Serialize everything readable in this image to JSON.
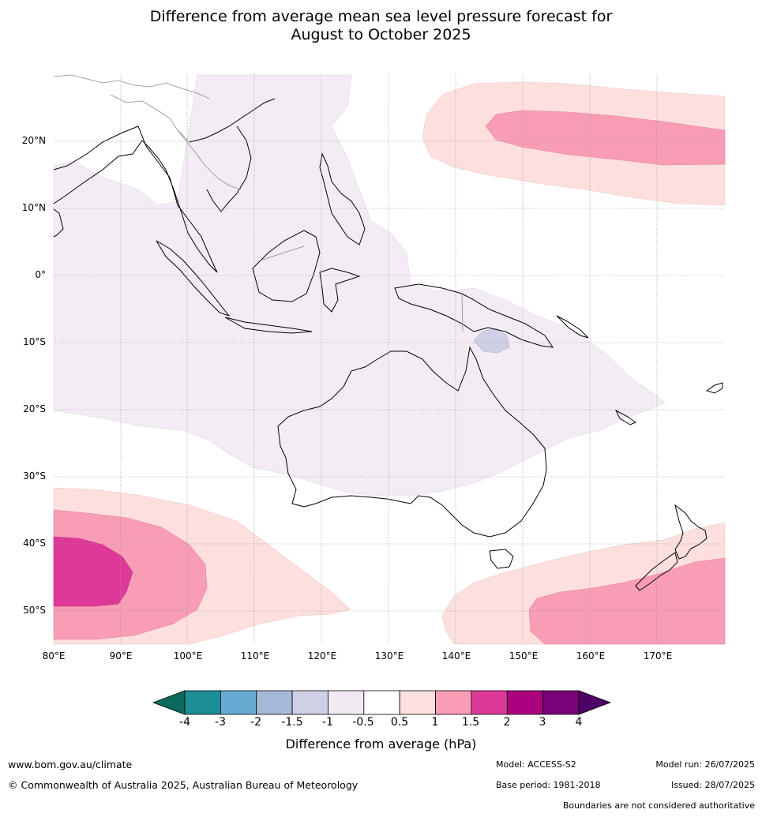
{
  "title": {
    "line1": "Difference from average mean sea level pressure forecast for",
    "line2": "August to October 2025"
  },
  "map": {
    "lat_labels": [
      "20°N",
      "10°N",
      "0°",
      "10°S",
      "20°S",
      "30°S",
      "40°S",
      "50°S"
    ],
    "lon_labels": [
      "80°E",
      "90°E",
      "100°E",
      "110°E",
      "120°E",
      "130°E",
      "140°E",
      "150°E",
      "160°E",
      "170°E"
    ],
    "region": "80°E–180°E, 30°N–55°S",
    "gridlines": true,
    "anomaly_areas": [
      {
        "area": "North-west Pacific",
        "range": "1 to 1.5 and 1.5 to 2"
      },
      {
        "area": "Southern Indian Ocean",
        "range": "1 to 1.5, 1.5 to 2 and 2 to 3"
      },
      {
        "area": "Tasman Sea / New Zealand",
        "range": "1 to 1.5 and 1.5 to 2"
      },
      {
        "area": "Maritime Continent and Australia",
        "range": "-0.5 to -1"
      },
      {
        "area": "South of New Guinea",
        "range": "-1 to -1.5"
      }
    ]
  },
  "colorbar": {
    "ticks": [
      "-4",
      "-3",
      "-2",
      "-1.5",
      "-1",
      "-0.5",
      "0.5",
      "1",
      "1.5",
      "2",
      "3",
      "4"
    ],
    "colors": [
      "#1b8e96",
      "#68abd2",
      "#a7b9d8",
      "#cfd0e6",
      "#f1eaf3",
      "#ffffff",
      "#fde0de",
      "#f89db5",
      "#de3998",
      "#ac017e",
      "#7a0177"
    ],
    "under_color": "#0d6b5c",
    "over_color": "#4d0066",
    "label": "Difference from average (hPa)"
  },
  "footer": {
    "website": "www.bom.gov.au/climate",
    "copyright": "© Commonwealth of Australia 2025, Australian Bureau of Meteorology",
    "model": "Model: ACCESS-S2",
    "base_period": "Base period: 1981-2018",
    "model_run": "Model run: 26/07/2025",
    "issued": "Issued: 28/07/2025",
    "disclaimer": "Boundaries are not considered authoritative"
  }
}
